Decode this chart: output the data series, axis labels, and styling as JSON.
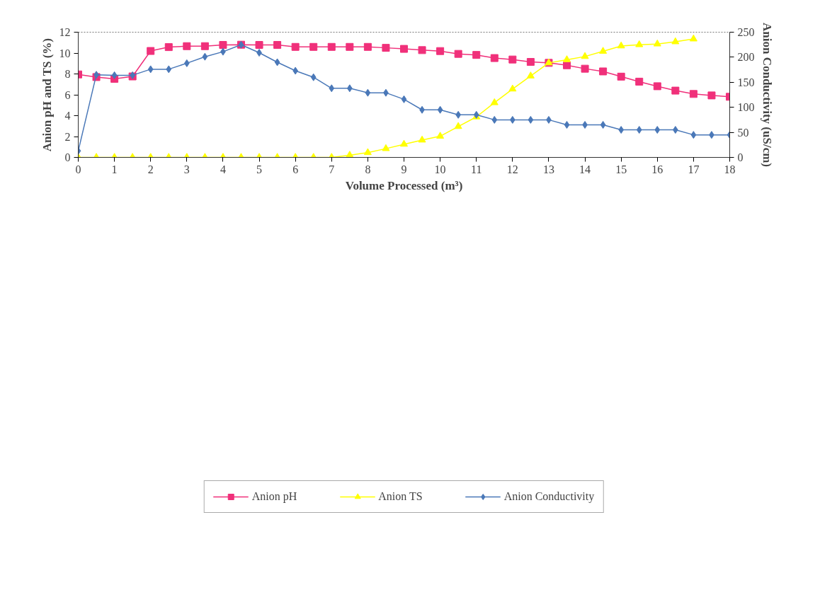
{
  "chart_data": {
    "type": "line",
    "xlabel": "Volume Processed (m³)",
    "ylabel": "Anion pH and TS (%)",
    "y2label": "Anion Conductivity (uS/cm)",
    "x": [
      0,
      0.5,
      1,
      1.5,
      2,
      2.5,
      3,
      3.5,
      4,
      4.5,
      5,
      5.5,
      6,
      6.5,
      7,
      7.5,
      8,
      8.5,
      9,
      9.5,
      10,
      10.5,
      11,
      11.5,
      12,
      12.5,
      13,
      13.5,
      14,
      14.5,
      15,
      15.5,
      16,
      16.5,
      17,
      17.5,
      18
    ],
    "series": [
      {
        "name": "Anion pH",
        "color": "#f0307a",
        "marker": "square",
        "values": [
          7.95,
          7.7,
          7.53,
          7.76,
          10.2,
          10.57,
          10.66,
          10.66,
          10.78,
          10.8,
          10.78,
          10.78,
          10.59,
          10.59,
          10.59,
          10.59,
          10.59,
          10.5,
          10.4,
          10.28,
          10.19,
          9.92,
          9.82,
          9.52,
          9.38,
          9.15,
          9.06,
          8.83,
          8.5,
          8.24,
          7.74,
          7.26,
          6.82,
          6.4,
          6.08,
          5.94,
          5.81
        ]
      },
      {
        "name": "Anion TS",
        "color": "#ffff00",
        "marker": "triangle",
        "values": [
          0,
          0,
          0,
          0,
          0,
          0,
          0,
          0,
          0,
          0,
          0,
          0,
          0,
          0,
          0,
          0.21,
          0.46,
          0.84,
          1.26,
          1.66,
          2.03,
          2.96,
          3.88,
          5.24,
          6.55,
          7.8,
          9.06,
          9.36,
          9.67,
          10.17,
          10.68,
          10.8,
          10.87,
          11.08,
          11.35,
          null,
          null
        ]
      },
      {
        "name": "Anion Conductivity",
        "color": "#4a78b8",
        "marker": "diamond",
        "axis": "y2",
        "values": [
          13,
          165,
          164,
          164,
          176,
          176,
          188,
          201,
          211,
          225,
          209,
          190,
          173,
          160,
          138,
          138,
          129,
          129,
          116,
          95,
          95,
          85,
          85,
          75,
          75,
          75,
          75,
          65,
          65,
          65,
          55,
          55,
          55,
          55,
          45,
          45,
          45
        ]
      }
    ],
    "xlim": [
      0,
      18
    ],
    "xticks": [
      0,
      1,
      2,
      3,
      4,
      5,
      6,
      7,
      8,
      9,
      10,
      11,
      12,
      13,
      14,
      15,
      16,
      17,
      18
    ],
    "ylim": [
      0,
      12
    ],
    "yticks": [
      0,
      2,
      4,
      6,
      8,
      10,
      12
    ],
    "y2lim": [
      0,
      250
    ],
    "y2ticks": [
      0,
      50,
      100,
      150,
      200,
      250
    ],
    "grid": false,
    "legend": "bottom"
  }
}
